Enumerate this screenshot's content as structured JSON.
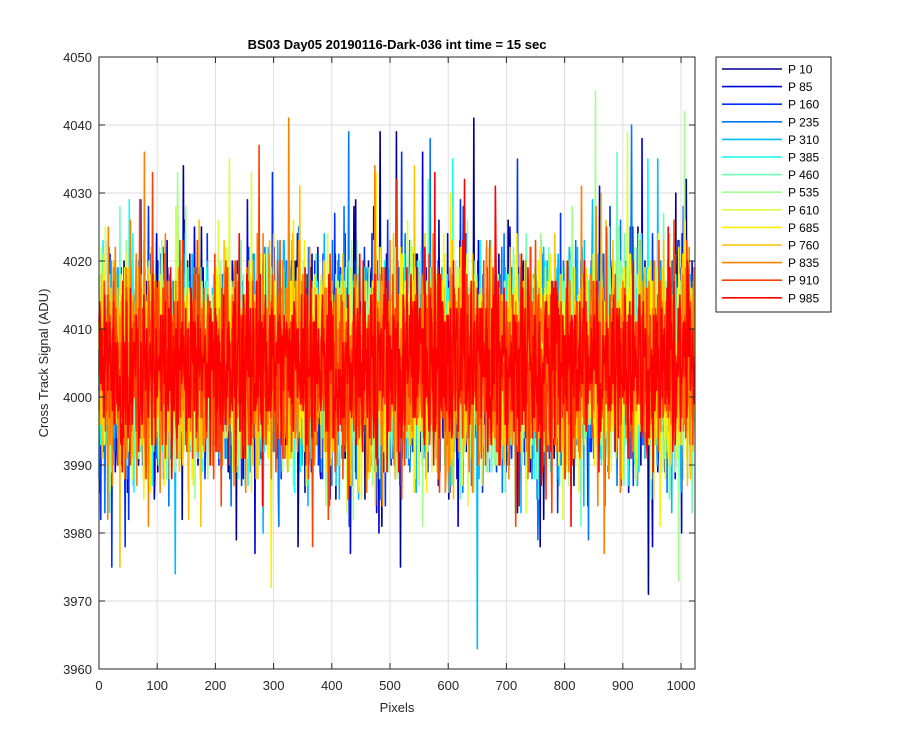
{
  "chart_data": {
    "type": "line",
    "title": "BS03 Day05 20190116-Dark-036 int time = 15 sec",
    "xlabel": "Pixels",
    "ylabel": "Cross Track Signal (ADU)",
    "xlim": [
      0,
      1024
    ],
    "ylim": [
      3960,
      4050
    ],
    "xticks": [
      0,
      100,
      200,
      300,
      400,
      500,
      600,
      700,
      800,
      900,
      1000
    ],
    "yticks": [
      3960,
      3970,
      3980,
      3990,
      4000,
      4010,
      4020,
      4030,
      4040,
      4050
    ],
    "x_range": [
      0,
      1023
    ],
    "grid": true,
    "legend_position": "outside-top-right",
    "series": [
      {
        "name": "P 10",
        "color": "#00008F",
        "mean": 4005,
        "spread": 8.0,
        "extremes": [
          [
            145,
            4034
          ],
          [
            236,
            3979
          ],
          [
            483,
            4039
          ],
          [
            511,
            4039
          ],
          [
            644,
            4041
          ],
          [
            944,
            3971
          ],
          [
            1009,
            4032
          ]
        ]
      },
      {
        "name": "P 85",
        "color": "#0000DC",
        "mean": 4005,
        "spread": 7.8,
        "extremes": [
          [
            268,
            3977
          ],
          [
            432,
            3977
          ],
          [
            556,
            4036
          ],
          [
            860,
            4031
          ],
          [
            933,
            4038
          ]
        ]
      },
      {
        "name": "P 160",
        "color": "#0030FF",
        "mean": 4005,
        "spread": 7.8,
        "extremes": [
          [
            22,
            3975
          ],
          [
            298,
            4033
          ],
          [
            520,
            4036
          ],
          [
            719,
            4035
          ],
          [
            788,
            3983
          ]
        ]
      },
      {
        "name": "P 235",
        "color": "#0078FF",
        "mean": 4005,
        "spread": 7.8,
        "extremes": [
          [
            429,
            4039
          ],
          [
            569,
            4038
          ],
          [
            755,
            3985
          ],
          [
            915,
            4040
          ]
        ]
      },
      {
        "name": "P 310",
        "color": "#00BCFF",
        "mean": 4005,
        "spread": 7.8,
        "extremes": [
          [
            131,
            3974
          ],
          [
            650,
            3963
          ],
          [
            960,
            4035
          ],
          [
            1000,
            3986
          ]
        ]
      },
      {
        "name": "P 385",
        "color": "#10FFEF",
        "mean": 4005,
        "spread": 7.5,
        "extremes": [
          [
            52,
            4029
          ],
          [
            608,
            4035
          ],
          [
            943,
            4035
          ]
        ]
      },
      {
        "name": "P 460",
        "color": "#70FFB8",
        "mean": 4005,
        "spread": 7.5,
        "extremes": [
          [
            36,
            4028
          ],
          [
            566,
            4032
          ],
          [
            890,
            4036
          ]
        ]
      },
      {
        "name": "P 535",
        "color": "#A0FF8F",
        "mean": 4005,
        "spread": 7.5,
        "extremes": [
          [
            135,
            4033
          ],
          [
            853,
            4045
          ],
          [
            1006,
            4042
          ],
          [
            996,
            3973
          ]
        ]
      },
      {
        "name": "P 610",
        "color": "#DCFF40",
        "mean": 4005,
        "spread": 7.5,
        "extremes": [
          [
            224,
            4035
          ],
          [
            262,
            4033
          ],
          [
            908,
            4039
          ]
        ]
      },
      {
        "name": "P 685",
        "color": "#FFF000",
        "mean": 4005,
        "spread": 7.5,
        "extremes": [
          [
            296,
            3972
          ],
          [
            476,
            4033
          ],
          [
            604,
            4030
          ]
        ]
      },
      {
        "name": "P 760",
        "color": "#FFC400",
        "mean": 4005,
        "spread": 7.5,
        "extremes": [
          [
            36,
            3975
          ],
          [
            345,
            4031
          ],
          [
            542,
            4034
          ],
          [
            863,
            4030
          ]
        ]
      },
      {
        "name": "P 835",
        "color": "#FF8000",
        "mean": 4005,
        "spread": 7.5,
        "extremes": [
          [
            78,
            4036
          ],
          [
            326,
            4041
          ],
          [
            868,
            3977
          ],
          [
            474,
            4034
          ]
        ]
      },
      {
        "name": "P 910",
        "color": "#FF4000",
        "mean": 4005,
        "spread": 7.0,
        "extremes": [
          [
            92,
            4033
          ],
          [
            275,
            4037
          ],
          [
            367,
            3978
          ],
          [
            512,
            4032
          ]
        ]
      },
      {
        "name": "P 985",
        "color": "#FF0000",
        "mean": 4005,
        "spread": 6.5,
        "extremes": [
          [
            628,
            4032
          ],
          [
            681,
            4031
          ],
          [
            811,
            3981
          ],
          [
            577,
            4033
          ]
        ]
      }
    ]
  }
}
